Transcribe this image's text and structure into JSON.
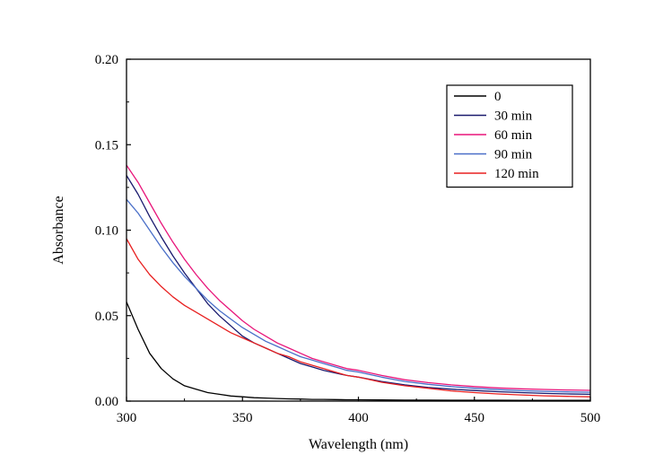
{
  "chart_data": {
    "type": "line",
    "xlabel": "Wavelength (nm)",
    "ylabel": "Absorbance",
    "xlim": [
      300,
      500
    ],
    "ylim": [
      0,
      0.2
    ],
    "xticks": [
      300,
      350,
      400,
      450,
      500
    ],
    "yticks": [
      0,
      0.05,
      0.1,
      0.15,
      0.2
    ],
    "xtick_labels": [
      "300",
      "350",
      "400",
      "450",
      "500"
    ],
    "ytick_labels": [
      "0.00",
      "0.05",
      "0.10",
      "0.15",
      "0.20"
    ],
    "grid": false,
    "legend_position": "top-right",
    "x": [
      300,
      305,
      310,
      315,
      320,
      325,
      330,
      335,
      340,
      345,
      350,
      355,
      360,
      365,
      370,
      375,
      380,
      385,
      390,
      395,
      400,
      410,
      420,
      430,
      440,
      450,
      460,
      470,
      480,
      490,
      500
    ],
    "series": [
      {
        "name": "0",
        "color": "#000000",
        "values": [
          0.058,
          0.042,
          0.028,
          0.019,
          0.013,
          0.009,
          0.007,
          0.005,
          0.004,
          0.003,
          0.0025,
          0.002,
          0.0018,
          0.0015,
          0.0013,
          0.0012,
          0.001,
          0.001,
          0.0009,
          0.0008,
          0.0008,
          0.0007,
          0.0006,
          0.0006,
          0.0005,
          0.0005,
          0.0005,
          0.0004,
          0.0004,
          0.0004,
          0.0004
        ]
      },
      {
        "name": "30 min",
        "color": "#1a1a6e",
        "values": [
          0.132,
          0.121,
          0.108,
          0.096,
          0.085,
          0.075,
          0.066,
          0.057,
          0.05,
          0.044,
          0.038,
          0.034,
          0.031,
          0.028,
          0.025,
          0.022,
          0.02,
          0.018,
          0.0165,
          0.015,
          0.014,
          0.0115,
          0.0095,
          0.008,
          0.007,
          0.0062,
          0.0055,
          0.005,
          0.0045,
          0.0042,
          0.004
        ]
      },
      {
        "name": "60 min",
        "color": "#e8157a",
        "values": [
          0.138,
          0.128,
          0.116,
          0.104,
          0.093,
          0.083,
          0.074,
          0.066,
          0.059,
          0.053,
          0.047,
          0.042,
          0.038,
          0.034,
          0.031,
          0.028,
          0.025,
          0.023,
          0.021,
          0.019,
          0.018,
          0.015,
          0.0125,
          0.0108,
          0.0095,
          0.0085,
          0.0077,
          0.0072,
          0.0068,
          0.0065,
          0.0063
        ]
      },
      {
        "name": "90 min",
        "color": "#4a6fc8",
        "values": [
          0.118,
          0.11,
          0.1,
          0.09,
          0.081,
          0.073,
          0.066,
          0.059,
          0.053,
          0.048,
          0.043,
          0.039,
          0.035,
          0.032,
          0.029,
          0.026,
          0.024,
          0.022,
          0.02,
          0.018,
          0.017,
          0.014,
          0.0115,
          0.0098,
          0.0085,
          0.0075,
          0.0067,
          0.0061,
          0.0057,
          0.0054,
          0.0052
        ]
      },
      {
        "name": "120 min",
        "color": "#e82020",
        "values": [
          0.095,
          0.083,
          0.074,
          0.067,
          0.061,
          0.056,
          0.052,
          0.048,
          0.044,
          0.04,
          0.037,
          0.034,
          0.031,
          0.028,
          0.026,
          0.023,
          0.021,
          0.019,
          0.017,
          0.015,
          0.014,
          0.011,
          0.009,
          0.0075,
          0.006,
          0.005,
          0.0042,
          0.0036,
          0.0031,
          0.0028,
          0.0025
        ]
      }
    ]
  }
}
